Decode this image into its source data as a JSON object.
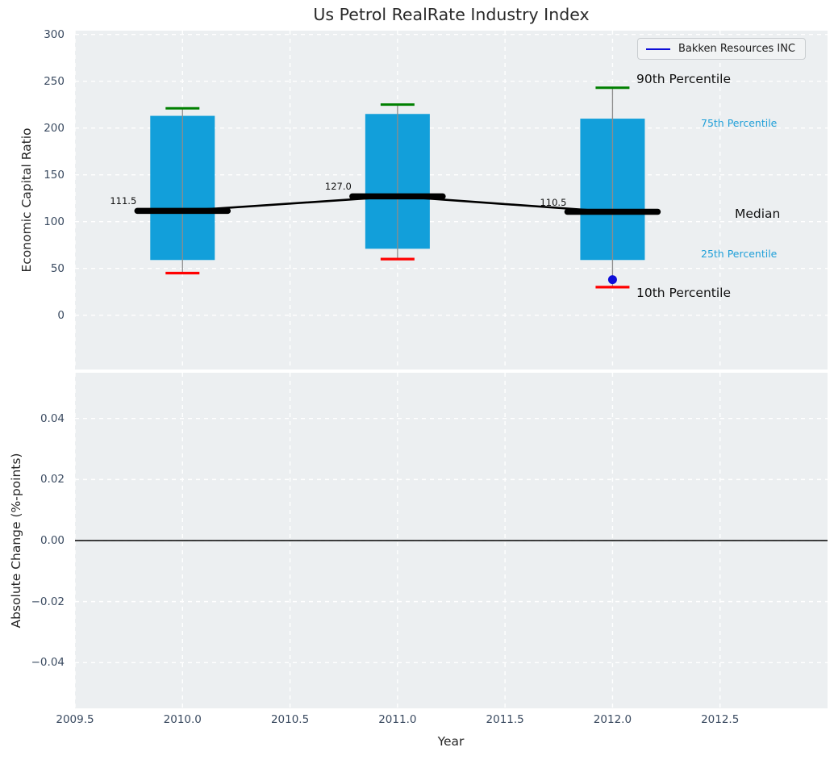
{
  "figure": {
    "title": "Us Petrol RealRate Industry Index",
    "xlabel": "Year"
  },
  "legend": {
    "label": "Bakken Resources INC"
  },
  "colors": {
    "panel_bg": "#eceff1",
    "grid": "#ffffff",
    "box_fill": "#129fda",
    "whisker": "#8c8c8c",
    "p90_cap": "#008000",
    "p10_cap": "#ff0000",
    "median_line": "#000000",
    "company_marker": "#0d0dd8",
    "percentile_label": "#1f9fd8",
    "tick_label": "#3b4b61",
    "zero_line": "#000000"
  },
  "chart_data": [
    {
      "type": "boxplot-timeseries",
      "panel": "top",
      "title": "Us Petrol RealRate Industry Index",
      "xlabel": "Year",
      "ylabel": "Economic Capital Ratio",
      "xlim": [
        2009.5,
        2013.0
      ],
      "ylim": [
        -58,
        304
      ],
      "grid": true,
      "yticks": [
        {
          "v": 0,
          "label": "0"
        },
        {
          "v": 50,
          "label": "50"
        },
        {
          "v": 100,
          "label": "100"
        },
        {
          "v": 150,
          "label": "150"
        },
        {
          "v": 200,
          "label": "200"
        },
        {
          "v": 250,
          "label": "250"
        },
        {
          "v": 300,
          "label": "300"
        }
      ],
      "xticks": [
        {
          "v": 2009.5,
          "label": "2009.5"
        },
        {
          "v": 2010.0,
          "label": "2010.0"
        },
        {
          "v": 2010.5,
          "label": "2010.5"
        },
        {
          "v": 2011.0,
          "label": "2011.0"
        },
        {
          "v": 2011.5,
          "label": "2011.5"
        },
        {
          "v": 2012.0,
          "label": "2012.0"
        },
        {
          "v": 2012.5,
          "label": "2012.5"
        }
      ],
      "boxes": [
        {
          "year": 2010,
          "p10": 45,
          "p25": 59,
          "median": 111.5,
          "p75": 213,
          "p90": 221,
          "median_label": "111.5"
        },
        {
          "year": 2011,
          "p10": 60,
          "p25": 71,
          "median": 127.0,
          "p75": 215,
          "p90": 225,
          "median_label": "127.0"
        },
        {
          "year": 2012,
          "p10": 30,
          "p25": 59,
          "median": 110.5,
          "p75": 210,
          "p90": 243,
          "median_label": "110.5"
        }
      ],
      "median_trend": [
        {
          "year": 2010,
          "value": 111.5
        },
        {
          "year": 2011,
          "value": 127.0
        },
        {
          "year": 2012,
          "value": 110.5
        }
      ],
      "company_series": {
        "name": "Bakken Resources INC",
        "points": [
          {
            "year": 2012,
            "value": 38
          }
        ]
      },
      "annotations": {
        "p90": "90th Percentile",
        "p75": "75th Percentile",
        "median": "Median",
        "p25": "25th Percentile",
        "p10": "10th Percentile"
      }
    },
    {
      "type": "line",
      "panel": "bottom",
      "ylabel": "Absolute Change (%-points)",
      "xlim": [
        2009.5,
        2013.0
      ],
      "ylim": [
        -0.055,
        0.055
      ],
      "grid": true,
      "zero_line": 0.0,
      "yticks": [
        {
          "v": 0.04,
          "label": "0.04"
        },
        {
          "v": 0.02,
          "label": "0.02"
        },
        {
          "v": 0.0,
          "label": "0.00"
        },
        {
          "v": -0.02,
          "label": "−0.02"
        },
        {
          "v": -0.04,
          "label": "−0.04"
        }
      ]
    }
  ]
}
